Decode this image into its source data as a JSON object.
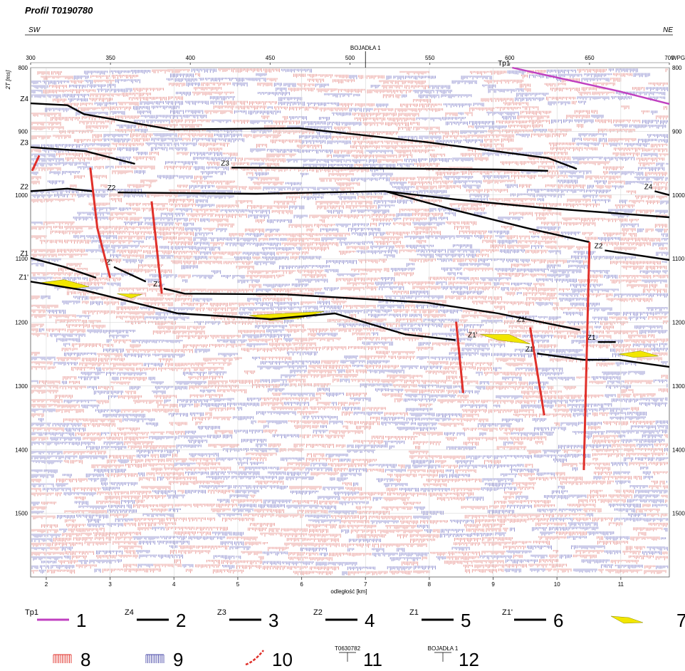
{
  "chart_data": {
    "type": "seismic-section",
    "title": "Profil T0190780",
    "left_direction": "SW",
    "right_direction": "NE",
    "ylabel": "2T [ms]",
    "xlabel": "odległość [km]",
    "x2label": "WPG",
    "xlim": [
      1.755,
      11.76
    ],
    "xticks": [
      2,
      3,
      4,
      5,
      6,
      7,
      8,
      9,
      10,
      11
    ],
    "x2lim": [
      300,
      700
    ],
    "x2ticks": [
      300,
      350,
      400,
      450,
      500,
      550,
      600,
      650,
      700
    ],
    "ylim": [
      800,
      1600
    ],
    "yticks": [
      800,
      900,
      1000,
      1100,
      1200,
      1300,
      1400,
      1500
    ],
    "grid": true,
    "well": {
      "name": "BOJADŁA 1",
      "x": 7.0
    },
    "series": [
      {
        "name": "Tp1",
        "color": "#c040c0",
        "x": [
          9.3,
          10.97,
          11.76
        ],
        "y": [
          800,
          837,
          857
        ]
      },
      {
        "name": "Z4",
        "color": "#000000",
        "x": [
          1.755,
          2.33,
          2.59,
          3.95,
          5.96,
          7.96,
          9.86,
          10.31
        ],
        "y": [
          856,
          859,
          873,
          897,
          895,
          917,
          942,
          959
        ]
      },
      {
        "name": "Z4",
        "color": "#000000",
        "x": [
          11.53,
          11.76
        ],
        "y": [
          994,
          1000
        ]
      },
      {
        "name": "Z3",
        "color": "#000000",
        "x": [
          1.755,
          2.61,
          3.39
        ],
        "y": [
          925,
          931,
          951
        ]
      },
      {
        "name": "Z3",
        "color": "#000000",
        "x": [
          4.9,
          7.07,
          9.08,
          9.86
        ],
        "y": [
          957,
          958,
          960,
          962
        ]
      },
      {
        "name": "Z2",
        "color": "#000000",
        "x": [
          1.755,
          2.33,
          2.72
        ],
        "y": [
          994,
          990,
          994
        ]
      },
      {
        "name": "Z2",
        "color": "#000000",
        "x": [
          3.12,
          5.29,
          7.3,
          8.41,
          9.75,
          11.76
        ],
        "y": [
          996,
          998,
          994,
          1007,
          1020,
          1035
        ]
      },
      {
        "color": "#000000",
        "x": [
          7.3,
          8.41,
          9.53,
          10.51
        ],
        "y": [
          994,
          1024,
          1052,
          1074
        ]
      },
      {
        "name": "Z2",
        "color": "#000000",
        "x": [
          10.75,
          11.76
        ],
        "y": [
          1087,
          1102
        ]
      },
      {
        "name": "Z1",
        "color": "#000000",
        "x": [
          1.755,
          2.28,
          2.78
        ],
        "y": [
          1099,
          1113,
          1130
        ]
      },
      {
        "name": "Z'",
        "color": "#000000",
        "x": [
          3.06,
          3.56
        ],
        "y": [
          1113,
          1136
        ]
      },
      {
        "name": "Z1",
        "color": "#000000",
        "x": [
          3.84,
          4.17,
          5.73,
          7.96,
          9.08,
          10.36
        ],
        "y": [
          1147,
          1155,
          1156,
          1169,
          1186,
          1212
        ]
      },
      {
        "name": "Z1",
        "color": "#000000",
        "x": [
          10.64,
          10.92
        ],
        "y": [
          1231,
          1231
        ]
      },
      {
        "name": "Z1'",
        "color": "#000000",
        "x": [
          1.755,
          2.61,
          4.06,
          5.51,
          6.52,
          7.63,
          8.41
        ],
        "y": [
          1136,
          1150,
          1186,
          1195,
          1186,
          1219,
          1228
        ]
      },
      {
        "name": "Z1'",
        "color": "#000000",
        "x": [
          9.69,
          10.42,
          10.97,
          11.76
        ],
        "y": [
          1249,
          1259,
          1259,
          1270
        ]
      }
    ],
    "faults": [
      {
        "color": "#e0302a",
        "x": [
          1.78,
          1.89
        ],
        "y": [
          962,
          938
        ]
      },
      {
        "color": "#e0302a",
        "x": [
          2.69,
          2.8,
          3.0
        ],
        "y": [
          957,
          1052,
          1130
        ]
      },
      {
        "color": "#e0302a",
        "x": [
          3.65,
          3.81
        ],
        "y": [
          1010,
          1155
        ]
      },
      {
        "color": "#e0302a",
        "x": [
          8.42,
          8.53
        ],
        "y": [
          1199,
          1311
        ]
      },
      {
        "name": "Z1'",
        "color": "#e0302a",
        "x": [
          9.58,
          9.8
        ],
        "y": [
          1208,
          1346
        ]
      },
      {
        "color": "#e0302a",
        "x": [
          10.51,
          10.42
        ],
        "y": [
          1074,
          1432
        ]
      }
    ],
    "bodies": [
      {
        "color": "#f2e600",
        "x": [
          1.89,
          2.28,
          2.67,
          2.39
        ],
        "y": [
          1138,
          1133,
          1144,
          1147
        ]
      },
      {
        "color": "#f2e600",
        "x": [
          3.11,
          3.5,
          3.33
        ],
        "y": [
          1155,
          1156,
          1162
        ]
      },
      {
        "color": "#f2e600",
        "x": [
          5.18,
          5.73,
          6.35,
          5.96,
          5.51
        ],
        "y": [
          1189,
          1186,
          1183,
          1194,
          1197
        ]
      },
      {
        "name": "Z1'",
        "color": "#f2e600",
        "x": [
          8.8,
          9.25,
          9.58,
          9.08
        ],
        "y": [
          1219,
          1219,
          1234,
          1228
        ]
      },
      {
        "color": "#f2e600",
        "x": [
          10.97,
          11.31,
          11.59,
          11.2
        ],
        "y": [
          1250,
          1245,
          1253,
          1255
        ]
      }
    ],
    "legend": [
      {
        "label": "Tp1",
        "key": 1
      },
      {
        "label": "Z4",
        "key": 2
      },
      {
        "label": "Z3",
        "key": 3
      },
      {
        "label": "Z2",
        "key": 4
      },
      {
        "label": "Z1",
        "key": 5
      },
      {
        "label": "Z1'",
        "key": 6
      },
      {
        "key": 7
      },
      {
        "key": 8
      },
      {
        "key": 9
      },
      {
        "key": 10
      },
      {
        "label": "T0630782",
        "key": 11
      },
      {
        "label": "BOJADŁA 1",
        "key": 12
      }
    ]
  }
}
